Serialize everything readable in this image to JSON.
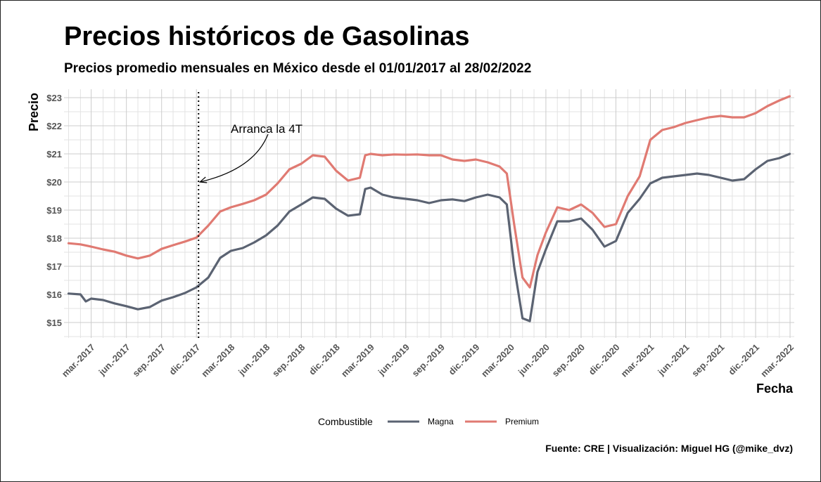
{
  "title": "Precios históricos de Gasolinas",
  "subtitle": "Precios promedio mensuales en México desde el 01/01/2017 al 28/02/2022",
  "caption": "Fuente: CRE | Visualización: Miguel HG (@mike_dvz)",
  "chart_data": {
    "type": "line",
    "xlabel": "Fecha",
    "ylabel": "Precio",
    "xlim": [
      "2017-01-01",
      "2022-02-28"
    ],
    "ylim": [
      14.45,
      23.3
    ],
    "grid": true,
    "legend_position": "bottom",
    "legend_title": "Combustible",
    "y_ticks": [
      {
        "value": 15,
        "label": "$15"
      },
      {
        "value": 16,
        "label": "$16"
      },
      {
        "value": 17,
        "label": "$17"
      },
      {
        "value": 18,
        "label": "$18"
      },
      {
        "value": 19,
        "label": "$19"
      },
      {
        "value": 20,
        "label": "$20"
      },
      {
        "value": 21,
        "label": "$21"
      },
      {
        "value": 22,
        "label": "$22"
      },
      {
        "value": 23,
        "label": "$23"
      }
    ],
    "x_ticks": [
      {
        "date": "2017-03-01",
        "label": "mar.-2017"
      },
      {
        "date": "2017-06-01",
        "label": "jun.-2017"
      },
      {
        "date": "2017-09-01",
        "label": "sep.-2017"
      },
      {
        "date": "2017-12-01",
        "label": "dic.-2017"
      },
      {
        "date": "2018-03-01",
        "label": "mar.-2018"
      },
      {
        "date": "2018-06-01",
        "label": "jun.-2018"
      },
      {
        "date": "2018-09-01",
        "label": "sep.-2018"
      },
      {
        "date": "2018-12-01",
        "label": "dic.-2018"
      },
      {
        "date": "2019-03-01",
        "label": "mar.-2019"
      },
      {
        "date": "2019-06-01",
        "label": "jun.-2019"
      },
      {
        "date": "2019-09-01",
        "label": "sep.-2019"
      },
      {
        "date": "2019-12-01",
        "label": "dic.-2019"
      },
      {
        "date": "2020-03-01",
        "label": "mar.-2020"
      },
      {
        "date": "2020-06-01",
        "label": "jun.-2020"
      },
      {
        "date": "2020-09-01",
        "label": "sep.-2020"
      },
      {
        "date": "2020-12-01",
        "label": "dic.-2020"
      },
      {
        "date": "2021-03-01",
        "label": "mar.-2021"
      },
      {
        "date": "2021-06-01",
        "label": "jun.-2021"
      },
      {
        "date": "2021-09-01",
        "label": "sep.-2021"
      },
      {
        "date": "2021-12-01",
        "label": "dic.-2021"
      },
      {
        "date": "2022-03-01",
        "label": "mar.-2022"
      }
    ],
    "annotation": {
      "text": "Arranca la 4T",
      "date": "2017-12-01",
      "y": 20.0
    },
    "series": [
      {
        "name": "Magna",
        "color": "#5b6372",
        "points": [
          [
            "2017-01-01",
            16.03
          ],
          [
            "2017-02-01",
            16.0
          ],
          [
            "2017-02-15",
            15.75
          ],
          [
            "2017-03-01",
            15.85
          ],
          [
            "2017-04-01",
            15.8
          ],
          [
            "2017-05-01",
            15.68
          ],
          [
            "2017-06-01",
            15.58
          ],
          [
            "2017-07-01",
            15.47
          ],
          [
            "2017-08-01",
            15.55
          ],
          [
            "2017-09-01",
            15.78
          ],
          [
            "2017-10-01",
            15.9
          ],
          [
            "2017-11-01",
            16.05
          ],
          [
            "2017-12-01",
            16.25
          ],
          [
            "2018-01-01",
            16.6
          ],
          [
            "2018-02-01",
            17.3
          ],
          [
            "2018-03-01",
            17.55
          ],
          [
            "2018-04-01",
            17.65
          ],
          [
            "2018-05-01",
            17.85
          ],
          [
            "2018-06-01",
            18.1
          ],
          [
            "2018-07-01",
            18.45
          ],
          [
            "2018-08-01",
            18.95
          ],
          [
            "2018-09-01",
            19.2
          ],
          [
            "2018-10-01",
            19.45
          ],
          [
            "2018-11-01",
            19.4
          ],
          [
            "2018-12-01",
            19.05
          ],
          [
            "2019-01-01",
            18.8
          ],
          [
            "2019-02-01",
            18.85
          ],
          [
            "2019-02-15",
            19.75
          ],
          [
            "2019-03-01",
            19.8
          ],
          [
            "2019-04-01",
            19.55
          ],
          [
            "2019-05-01",
            19.45
          ],
          [
            "2019-06-01",
            19.4
          ],
          [
            "2019-07-01",
            19.35
          ],
          [
            "2019-08-01",
            19.25
          ],
          [
            "2019-09-01",
            19.35
          ],
          [
            "2019-10-01",
            19.38
          ],
          [
            "2019-11-01",
            19.32
          ],
          [
            "2019-12-01",
            19.45
          ],
          [
            "2020-01-01",
            19.55
          ],
          [
            "2020-02-01",
            19.45
          ],
          [
            "2020-02-20",
            19.2
          ],
          [
            "2020-03-10",
            17.0
          ],
          [
            "2020-04-01",
            15.15
          ],
          [
            "2020-04-20",
            15.05
          ],
          [
            "2020-05-10",
            16.8
          ],
          [
            "2020-06-01",
            17.6
          ],
          [
            "2020-07-01",
            18.6
          ],
          [
            "2020-08-01",
            18.6
          ],
          [
            "2020-09-01",
            18.7
          ],
          [
            "2020-10-01",
            18.3
          ],
          [
            "2020-11-01",
            17.7
          ],
          [
            "2020-12-01",
            17.9
          ],
          [
            "2021-01-01",
            18.9
          ],
          [
            "2021-02-01",
            19.4
          ],
          [
            "2021-03-01",
            19.95
          ],
          [
            "2021-04-01",
            20.15
          ],
          [
            "2021-05-01",
            20.2
          ],
          [
            "2021-06-01",
            20.25
          ],
          [
            "2021-07-01",
            20.3
          ],
          [
            "2021-08-01",
            20.25
          ],
          [
            "2021-09-01",
            20.15
          ],
          [
            "2021-10-01",
            20.05
          ],
          [
            "2021-11-01",
            20.1
          ],
          [
            "2021-12-01",
            20.45
          ],
          [
            "2022-01-01",
            20.75
          ],
          [
            "2022-02-01",
            20.85
          ],
          [
            "2022-02-28",
            21.0
          ]
        ]
      },
      {
        "name": "Premium",
        "color": "#e07a72",
        "points": [
          [
            "2017-01-01",
            17.82
          ],
          [
            "2017-02-01",
            17.78
          ],
          [
            "2017-03-01",
            17.7
          ],
          [
            "2017-04-01",
            17.6
          ],
          [
            "2017-05-01",
            17.52
          ],
          [
            "2017-06-01",
            17.38
          ],
          [
            "2017-07-01",
            17.28
          ],
          [
            "2017-08-01",
            17.38
          ],
          [
            "2017-09-01",
            17.62
          ],
          [
            "2017-10-01",
            17.75
          ],
          [
            "2017-11-01",
            17.88
          ],
          [
            "2017-12-01",
            18.02
          ],
          [
            "2018-01-01",
            18.45
          ],
          [
            "2018-02-01",
            18.95
          ],
          [
            "2018-03-01",
            19.1
          ],
          [
            "2018-04-01",
            19.22
          ],
          [
            "2018-05-01",
            19.35
          ],
          [
            "2018-06-01",
            19.55
          ],
          [
            "2018-07-01",
            19.95
          ],
          [
            "2018-08-01",
            20.45
          ],
          [
            "2018-09-01",
            20.65
          ],
          [
            "2018-10-01",
            20.95
          ],
          [
            "2018-11-01",
            20.9
          ],
          [
            "2018-12-01",
            20.4
          ],
          [
            "2019-01-01",
            20.05
          ],
          [
            "2019-02-01",
            20.15
          ],
          [
            "2019-02-15",
            20.95
          ],
          [
            "2019-03-01",
            21.0
          ],
          [
            "2019-04-01",
            20.95
          ],
          [
            "2019-05-01",
            20.98
          ],
          [
            "2019-06-01",
            20.97
          ],
          [
            "2019-07-01",
            20.98
          ],
          [
            "2019-08-01",
            20.95
          ],
          [
            "2019-09-01",
            20.95
          ],
          [
            "2019-10-01",
            20.8
          ],
          [
            "2019-11-01",
            20.75
          ],
          [
            "2019-12-01",
            20.8
          ],
          [
            "2020-01-01",
            20.7
          ],
          [
            "2020-02-01",
            20.55
          ],
          [
            "2020-02-20",
            20.3
          ],
          [
            "2020-03-10",
            18.5
          ],
          [
            "2020-04-01",
            16.6
          ],
          [
            "2020-04-20",
            16.25
          ],
          [
            "2020-05-10",
            17.4
          ],
          [
            "2020-06-01",
            18.2
          ],
          [
            "2020-07-01",
            19.1
          ],
          [
            "2020-08-01",
            19.0
          ],
          [
            "2020-09-01",
            19.2
          ],
          [
            "2020-10-01",
            18.9
          ],
          [
            "2020-11-01",
            18.4
          ],
          [
            "2020-12-01",
            18.5
          ],
          [
            "2021-01-01",
            19.5
          ],
          [
            "2021-02-01",
            20.2
          ],
          [
            "2021-03-01",
            21.5
          ],
          [
            "2021-04-01",
            21.85
          ],
          [
            "2021-05-01",
            21.95
          ],
          [
            "2021-06-01",
            22.1
          ],
          [
            "2021-07-01",
            22.2
          ],
          [
            "2021-08-01",
            22.3
          ],
          [
            "2021-09-01",
            22.35
          ],
          [
            "2021-10-01",
            22.3
          ],
          [
            "2021-11-01",
            22.3
          ],
          [
            "2021-12-01",
            22.45
          ],
          [
            "2022-01-01",
            22.7
          ],
          [
            "2022-02-01",
            22.9
          ],
          [
            "2022-02-28",
            23.05
          ]
        ]
      }
    ]
  }
}
